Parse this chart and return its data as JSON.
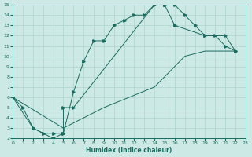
{
  "xlabel": "Humidex (Indice chaleur)",
  "xlim": [
    0,
    23
  ],
  "ylim": [
    2,
    15
  ],
  "xticks": [
    0,
    1,
    2,
    3,
    4,
    5,
    6,
    7,
    8,
    9,
    10,
    11,
    12,
    13,
    14,
    15,
    16,
    17,
    18,
    19,
    20,
    21,
    22,
    23
  ],
  "yticks": [
    2,
    3,
    4,
    5,
    6,
    7,
    8,
    9,
    10,
    11,
    12,
    13,
    14,
    15
  ],
  "background_color": "#cce9e5",
  "grid_color": "#aed4cf",
  "line_color": "#1a6b5e",
  "line1_x": [
    0,
    1,
    2,
    3,
    4,
    5,
    6,
    7,
    8,
    9,
    10,
    11,
    12,
    13,
    14,
    15,
    16,
    17,
    18,
    19,
    20,
    21,
    22
  ],
  "line1_y": [
    6,
    5,
    3,
    2.5,
    2,
    2.5,
    6.5,
    9.5,
    11.5,
    11.5,
    13,
    13.5,
    14,
    14,
    15,
    15,
    15,
    14,
    13,
    12,
    12,
    11,
    10.5
  ],
  "line2_x": [
    0,
    2,
    3,
    4,
    5,
    5,
    6,
    14,
    15,
    16,
    19,
    21,
    22
  ],
  "line2_y": [
    6,
    3,
    2.5,
    2.5,
    2.5,
    5,
    5,
    15,
    15,
    13,
    12,
    12,
    10.5
  ],
  "line3_x": [
    0,
    5,
    9,
    14,
    17,
    19,
    22
  ],
  "line3_y": [
    6,
    3,
    5,
    7,
    10,
    10.5,
    10.5
  ]
}
